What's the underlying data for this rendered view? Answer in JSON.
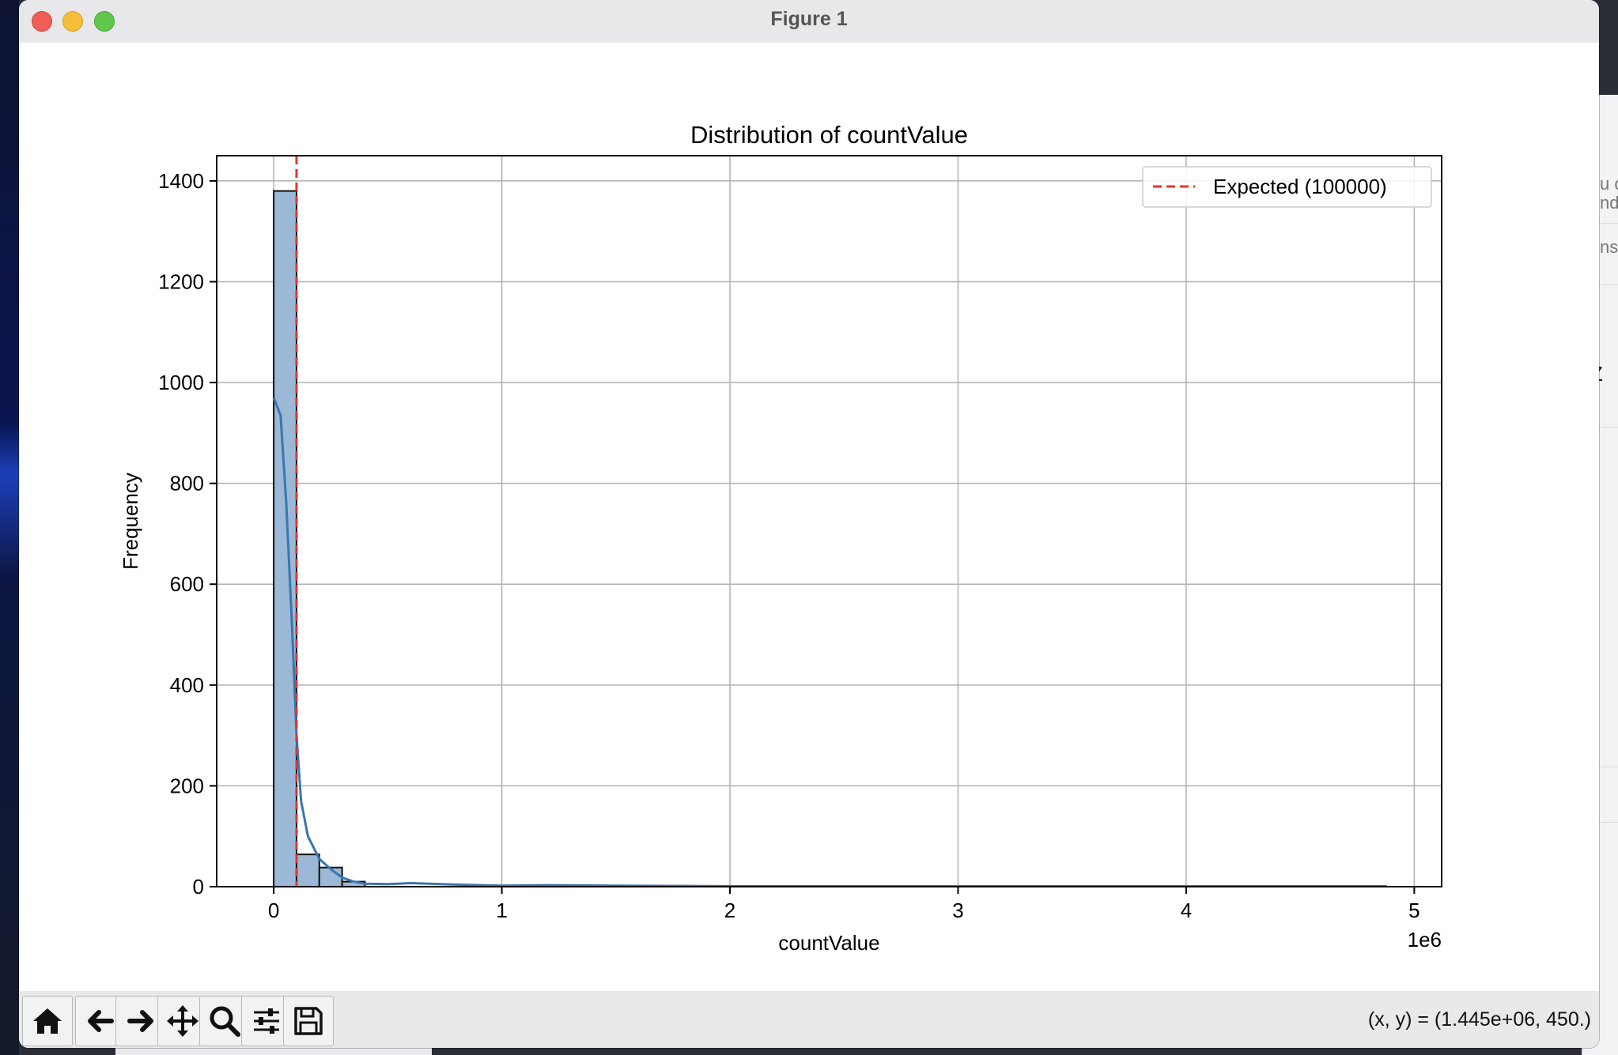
{
  "window": {
    "title": "Figure 1"
  },
  "toolbar": {
    "buttons": [
      {
        "name": "home-button",
        "icon": "home-icon"
      },
      {
        "name": "back-button",
        "icon": "arrow-left-icon"
      },
      {
        "name": "forward-button",
        "icon": "arrow-right-icon"
      },
      {
        "name": "pan-button",
        "icon": "move-icon"
      },
      {
        "name": "zoom-button",
        "icon": "search-icon"
      },
      {
        "name": "configure-subplots-button",
        "icon": "sliders-icon"
      },
      {
        "name": "save-button",
        "icon": "save-icon"
      }
    ],
    "coords": "(x, y) = (1.445e+06, 450.)"
  },
  "background_window": {
    "fragments": [
      "u c",
      "nd",
      "ns",
      "Z"
    ]
  },
  "chart_data": {
    "type": "bar",
    "title": "Distribution of countValue",
    "xlabel": "countValue",
    "ylabel": "Frequency",
    "x_offset_label": "1e6",
    "xlim": [
      -0.25,
      5.12
    ],
    "ylim": [
      0,
      1450
    ],
    "xticks": [
      0,
      1,
      2,
      3,
      4,
      5
    ],
    "xtick_labels": [
      "0",
      "1",
      "2",
      "3",
      "4",
      "5"
    ],
    "yticks": [
      0,
      200,
      400,
      600,
      800,
      1000,
      1200,
      1400
    ],
    "ytick_labels": [
      "0",
      "200",
      "400",
      "600",
      "800",
      "1000",
      "1200",
      "1400"
    ],
    "grid": true,
    "bar_fill": "#9bb9d6",
    "bar_edge": "#111111",
    "bins": [
      {
        "x0": 0.0,
        "x1": 0.1,
        "count": 1380
      },
      {
        "x0": 0.1,
        "x1": 0.2,
        "count": 64
      },
      {
        "x0": 0.2,
        "x1": 0.3,
        "count": 38
      },
      {
        "x0": 0.3,
        "x1": 0.4,
        "count": 10
      }
    ],
    "kde": {
      "name": "KDE",
      "color": "#3a76af",
      "x": [
        0.0,
        0.03,
        0.055,
        0.08,
        0.1,
        0.12,
        0.15,
        0.2,
        0.25,
        0.3,
        0.35,
        0.4,
        0.5,
        0.6,
        0.8,
        1.0,
        1.2,
        1.5,
        2.0,
        3.0,
        4.0,
        4.88
      ],
      "y": [
        970,
        935,
        760,
        520,
        300,
        170,
        100,
        55,
        35,
        18,
        10,
        6,
        5,
        7,
        4,
        2,
        3,
        2,
        1,
        1,
        1,
        1
      ]
    },
    "reference_line": {
      "x": 0.1,
      "label": "Expected (100000)",
      "color": "#e8322c"
    },
    "legend": {
      "position": "top-right",
      "entries": [
        "Expected (100000)"
      ]
    }
  }
}
